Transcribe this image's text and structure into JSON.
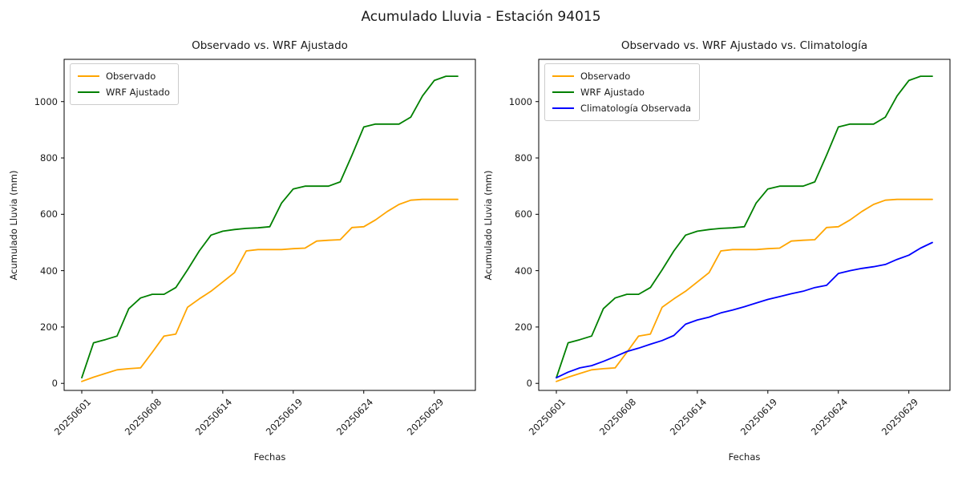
{
  "figure": {
    "title": "Acumulado Lluvia - Estación 94015"
  },
  "chart_data": {
    "type": "line",
    "title": "Acumulado Lluvia - Estación 94015",
    "xlabel": "Fechas",
    "ylabel": "Acumulado Lluvia (mm)",
    "grid": false,
    "legend_position": "upper left",
    "n_points": 33,
    "x_tick_indices": [
      0,
      6,
      12,
      18,
      24,
      30
    ],
    "x_tick_labels": [
      "20250601",
      "20250608",
      "20250614",
      "20250619",
      "20250624",
      "20250629"
    ],
    "yticks": [
      0,
      200,
      400,
      600,
      800,
      1000
    ],
    "ylim": [
      -25,
      1150
    ],
    "series": [
      {
        "name": "Observado",
        "color": "#FFA500",
        "values": [
          7,
          22,
          35,
          48,
          52,
          55,
          110,
          168,
          175,
          270,
          300,
          327,
          360,
          393,
          470,
          475,
          475,
          475,
          478,
          480,
          505,
          508,
          510,
          553,
          556,
          580,
          610,
          635,
          650,
          653,
          653,
          653,
          653
        ]
      },
      {
        "name": "WRF Ajustado",
        "color": "#008000",
        "values": [
          20,
          144,
          155,
          168,
          265,
          303,
          316,
          316,
          340,
          403,
          470,
          526,
          540,
          546,
          550,
          552,
          556,
          640,
          690,
          700,
          700,
          700,
          715,
          810,
          910,
          920,
          920,
          920,
          945,
          1020,
          1075,
          1090,
          1090
        ]
      },
      {
        "name": "Climatología Observada",
        "color": "#0000FF",
        "values": [
          20,
          40,
          55,
          63,
          78,
          95,
          113,
          125,
          139,
          152,
          170,
          210,
          225,
          235,
          250,
          260,
          272,
          285,
          298,
          308,
          318,
          327,
          340,
          348,
          390,
          400,
          408,
          414,
          422,
          440,
          455,
          480,
          500
        ]
      }
    ],
    "subplots": [
      {
        "title": "Observado vs. WRF Ajustado",
        "xlabel": "Fechas",
        "ylabel": "Acumulado Lluvia (mm)",
        "series_refs": [
          0,
          1
        ],
        "legend": [
          "Observado",
          "WRF Ajustado"
        ]
      },
      {
        "title": "Observado vs. WRF Ajustado vs. Climatología",
        "xlabel": "Fechas",
        "ylabel": "Acumulado Lluvia (mm)",
        "series_refs": [
          0,
          1,
          2
        ],
        "legend": [
          "Observado",
          "WRF Ajustado",
          "Climatología Observada"
        ]
      }
    ]
  }
}
